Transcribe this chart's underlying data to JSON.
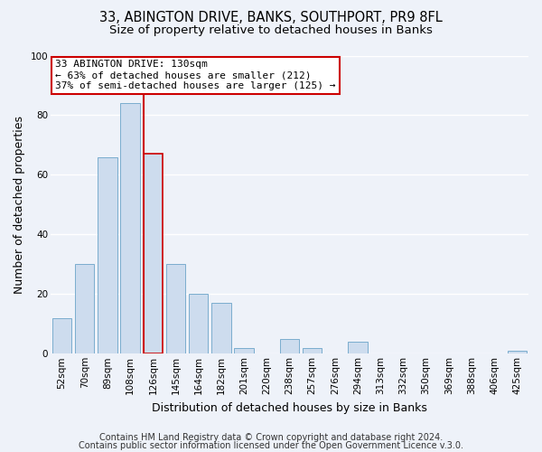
{
  "title": "33, ABINGTON DRIVE, BANKS, SOUTHPORT, PR9 8FL",
  "subtitle": "Size of property relative to detached houses in Banks",
  "xlabel": "Distribution of detached houses by size in Banks",
  "ylabel": "Number of detached properties",
  "bar_labels": [
    "52sqm",
    "70sqm",
    "89sqm",
    "108sqm",
    "126sqm",
    "145sqm",
    "164sqm",
    "182sqm",
    "201sqm",
    "220sqm",
    "238sqm",
    "257sqm",
    "276sqm",
    "294sqm",
    "313sqm",
    "332sqm",
    "350sqm",
    "369sqm",
    "388sqm",
    "406sqm",
    "425sqm"
  ],
  "bar_values": [
    12,
    30,
    66,
    84,
    67,
    30,
    20,
    17,
    2,
    0,
    5,
    2,
    0,
    4,
    0,
    0,
    0,
    0,
    0,
    0,
    1
  ],
  "bar_color": "#cddcee",
  "bar_edge_color": "#7aadce",
  "highlight_line_color": "#cc0000",
  "highlight_bar_index": 4,
  "highlight_bar_edge_color": "#cc0000",
  "annotation_text": "33 ABINGTON DRIVE: 130sqm\n← 63% of detached houses are smaller (212)\n37% of semi-detached houses are larger (125) →",
  "annotation_box_color": "#ffffff",
  "annotation_box_edge_color": "#cc0000",
  "ylim": [
    0,
    100
  ],
  "yticks": [
    0,
    20,
    40,
    60,
    80,
    100
  ],
  "footer1": "Contains HM Land Registry data © Crown copyright and database right 2024.",
  "footer2": "Contains public sector information licensed under the Open Government Licence v.3.0.",
  "background_color": "#eef2f9",
  "plot_bg_color": "#eef2f9",
  "grid_color": "#ffffff",
  "title_fontsize": 10.5,
  "subtitle_fontsize": 9.5,
  "axis_label_fontsize": 9,
  "tick_fontsize": 7.5,
  "footer_fontsize": 7,
  "annotation_fontsize": 8
}
